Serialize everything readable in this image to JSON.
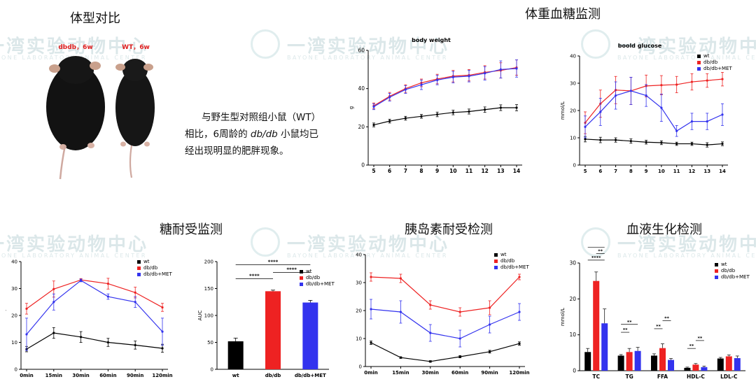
{
  "sections": {
    "body_shape": "体型对比",
    "weight_glucose": "体重血糖监测",
    "gtt": "糖耐受监测",
    "itt": "胰岛素耐受检测",
    "biochem": "血液生化检测"
  },
  "photo": {
    "label_dbdb": "dbdb，6w",
    "label_wt": "WT，6w"
  },
  "description": {
    "line1": "与野生型对照组小鼠（WT）",
    "line2a": "相比，6周龄的 ",
    "line2b": "db/db",
    "line2c": " 小鼠均已",
    "line3": "经出现明显的肥胖现象。"
  },
  "watermark": {
    "text": "一湾实验动物中心",
    "sub": "BAYONE LABORATORY ANIMAL CENTER"
  },
  "colors": {
    "wt": "#000000",
    "dbdb": "#ee2222",
    "met": "#3333ee"
  },
  "chart_data": [
    {
      "id": "body_weight",
      "type": "line",
      "title": "body weight",
      "ylabel": "g",
      "xlabel": "",
      "x": [
        5,
        6,
        7,
        8,
        9,
        10,
        11,
        12,
        13,
        14
      ],
      "ylim": [
        0,
        60
      ],
      "yticks": [
        0,
        20,
        40,
        60
      ],
      "legend": false,
      "series": [
        {
          "key": "wt",
          "values": [
            21,
            23,
            24.5,
            25.5,
            26.5,
            27.5,
            28,
            29,
            30,
            30
          ],
          "err": [
            1,
            1,
            1,
            1,
            1.2,
            1.2,
            1.3,
            1.4,
            1.5,
            1.6
          ]
        },
        {
          "key": "dbdb",
          "values": [
            31,
            36,
            40,
            43,
            45,
            46.5,
            47,
            48.5,
            49.5,
            51
          ],
          "err": [
            1.5,
            2,
            2,
            2,
            2.5,
            3,
            3,
            3.5,
            4,
            4
          ]
        },
        {
          "key": "met",
          "values": [
            30.5,
            35.5,
            39.5,
            42,
            44.5,
            46,
            46.5,
            48,
            50,
            50.5
          ],
          "err": [
            1.5,
            2,
            2,
            2.5,
            2.5,
            3,
            3,
            3.5,
            4.5,
            4.5
          ]
        }
      ]
    },
    {
      "id": "blood_glucose",
      "type": "line",
      "title": "boold glucose",
      "ylabel": "mmol/L",
      "xlabel": "",
      "x": [
        5,
        6,
        7,
        8,
        9,
        10,
        11,
        12,
        13,
        14
      ],
      "ylim": [
        0,
        40
      ],
      "yticks": [
        0,
        10,
        20,
        30,
        40
      ],
      "legend": true,
      "legend_pos": "top-right",
      "series": [
        {
          "key": "wt",
          "name": "wt",
          "values": [
            9.5,
            9.2,
            9.2,
            8.8,
            8.4,
            8.2,
            7.8,
            7.8,
            7.4,
            7.8
          ],
          "err": [
            1,
            1,
            0.8,
            0.8,
            0.7,
            0.7,
            0.6,
            0.6,
            0.8,
            0.7
          ]
        },
        {
          "key": "dbdb",
          "name": "db/db",
          "values": [
            15.5,
            22.5,
            27.5,
            27.2,
            29,
            29.3,
            29.5,
            30.5,
            31,
            31.5
          ],
          "err": [
            4,
            5,
            5,
            5,
            4,
            3.5,
            3,
            3,
            2.5,
            2.5
          ]
        },
        {
          "key": "met",
          "name": "db/db+MET",
          "values": [
            14,
            19.5,
            25.5,
            27.2,
            25.5,
            21,
            12.5,
            16,
            16,
            18.5
          ],
          "err": [
            4,
            5,
            5,
            5,
            4,
            5,
            2,
            3,
            3,
            4
          ]
        }
      ]
    },
    {
      "id": "gtt",
      "type": "line",
      "title": "",
      "ylabel": "mmol/L",
      "xlabel": "",
      "x": [
        "0min",
        "15min",
        "30min",
        "60min",
        "90min",
        "120min"
      ],
      "ylim": [
        0,
        40
      ],
      "yticks": [
        0,
        10,
        20,
        30,
        40
      ],
      "legend": true,
      "legend_pos": "top-right",
      "series": [
        {
          "key": "wt",
          "name": "wt",
          "values": [
            7.5,
            13.5,
            12,
            10,
            9,
            7.8
          ],
          "err": [
            1,
            2,
            2,
            1.5,
            1.5,
            1.5
          ]
        },
        {
          "key": "dbdb",
          "name": "db/db",
          "values": [
            22.5,
            29.8,
            33.2,
            31.8,
            28.5,
            23
          ],
          "err": [
            2,
            3,
            0.5,
            2,
            2,
            1.5
          ]
        },
        {
          "key": "met",
          "name": "db/db+MET",
          "values": [
            13,
            25,
            33,
            27,
            25,
            14
          ],
          "err": [
            6,
            3,
            0.5,
            1,
            2,
            5
          ]
        }
      ]
    },
    {
      "id": "gtt_auc",
      "type": "bar",
      "title": "",
      "ylabel": "AUC",
      "xlabel": "",
      "categories": [
        "wt",
        "db/db",
        "db/db+MET"
      ],
      "ylim": [
        0,
        200
      ],
      "yticks": [
        0,
        50,
        100,
        150,
        200
      ],
      "values": [
        52,
        145,
        124
      ],
      "err": [
        6,
        2,
        4
      ],
      "legend": true,
      "legend_pos": "top-right",
      "significance": [
        {
          "from": 0,
          "to": 1,
          "label": "****"
        },
        {
          "from": 1,
          "to": 2,
          "label": "****"
        },
        {
          "from": 0,
          "to": 2,
          "label": "****"
        }
      ]
    },
    {
      "id": "itt",
      "type": "line",
      "title": "",
      "ylabel": "",
      "xlabel": "",
      "x": [
        "0min",
        "15min",
        "30min",
        "60min",
        "90min",
        "120min"
      ],
      "ylim": [
        0,
        40
      ],
      "yticks": [
        0,
        10,
        20,
        30,
        40
      ],
      "legend": true,
      "legend_pos": "top-right",
      "series": [
        {
          "key": "wt",
          "name": "wt",
          "values": [
            8.5,
            3.2,
            1.8,
            3.5,
            5.3,
            8.2
          ],
          "err": [
            0.6,
            0.3,
            0.3,
            0.4,
            0.5,
            0.6
          ]
        },
        {
          "key": "dbdb",
          "name": "db/db",
          "values": [
            32,
            31.5,
            22,
            19.5,
            21,
            32
          ],
          "err": [
            1.5,
            1.5,
            1.5,
            1.5,
            2.5,
            1
          ]
        },
        {
          "key": "met",
          "name": "db/db+MET",
          "values": [
            20.5,
            19.5,
            12,
            10,
            15,
            19.5
          ],
          "err": [
            3.5,
            4,
            3,
            3,
            3,
            3
          ]
        }
      ]
    },
    {
      "id": "biochem",
      "type": "bar",
      "title": "",
      "ylabel": "mmol/L",
      "xlabel": "",
      "categories": [
        "TC",
        "TG",
        "FFA",
        "HDL-C",
        "LDL-C"
      ],
      "ylim": [
        0,
        30
      ],
      "yticks": [
        0,
        10,
        20,
        30
      ],
      "legend": true,
      "legend_pos": "top-right",
      "series": [
        {
          "key": "wt",
          "name": "wt",
          "values": [
            5.2,
            4.2,
            4.2,
            0.8,
            3.4
          ],
          "err": [
            1,
            0.3,
            0.5,
            0.2,
            0.3
          ]
        },
        {
          "key": "dbdb",
          "name": "db/db",
          "values": [
            25,
            5.2,
            6.3,
            1.7,
            4
          ],
          "err": [
            2.5,
            1,
            1.2,
            0.3,
            0.4
          ]
        },
        {
          "key": "met",
          "name": "db/db+MET",
          "values": [
            13.2,
            5.5,
            3,
            1,
            3.5
          ],
          "err": [
            4,
            1,
            0.4,
            0.3,
            0.6
          ]
        }
      ],
      "significance": [
        {
          "cat": 0,
          "from": 0,
          "to": 2,
          "label": "****"
        },
        {
          "cat": 0,
          "from": 1,
          "to": 2,
          "label": "**"
        },
        {
          "cat": 0,
          "from": 0,
          "to": 2,
          "label": "**"
        },
        {
          "cat": 1,
          "from": 0,
          "to": 1,
          "label": "**"
        },
        {
          "cat": 1,
          "from": 0,
          "to": 2,
          "label": "**"
        },
        {
          "cat": 2,
          "from": 0,
          "to": 1,
          "label": "**"
        },
        {
          "cat": 2,
          "from": 1,
          "to": 2,
          "label": "**"
        },
        {
          "cat": 3,
          "from": 0,
          "to": 1,
          "label": "**"
        },
        {
          "cat": 3,
          "from": 1,
          "to": 2,
          "label": "**"
        }
      ]
    }
  ]
}
